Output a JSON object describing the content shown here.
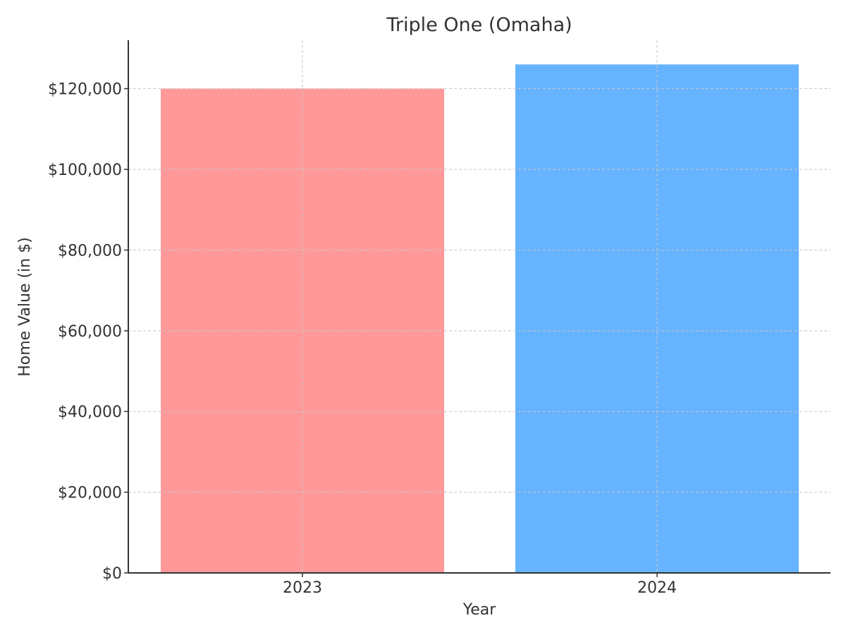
{
  "chart_data": {
    "type": "bar",
    "title": "Triple One (Omaha)",
    "xlabel": "Year",
    "ylabel": "Home Value (in $)",
    "categories": [
      "2023",
      "2024"
    ],
    "values": [
      120000,
      126000
    ],
    "bar_colors": [
      "#ff9999",
      "#66b3ff"
    ],
    "ylim": [
      0,
      132000
    ],
    "yticks": [
      0,
      20000,
      40000,
      60000,
      80000,
      100000,
      120000
    ],
    "ytick_labels": [
      "$0",
      "$20,000",
      "$40,000",
      "$60,000",
      "$80,000",
      "$100,000",
      "$120,000"
    ],
    "grid": true,
    "legend": "none"
  }
}
